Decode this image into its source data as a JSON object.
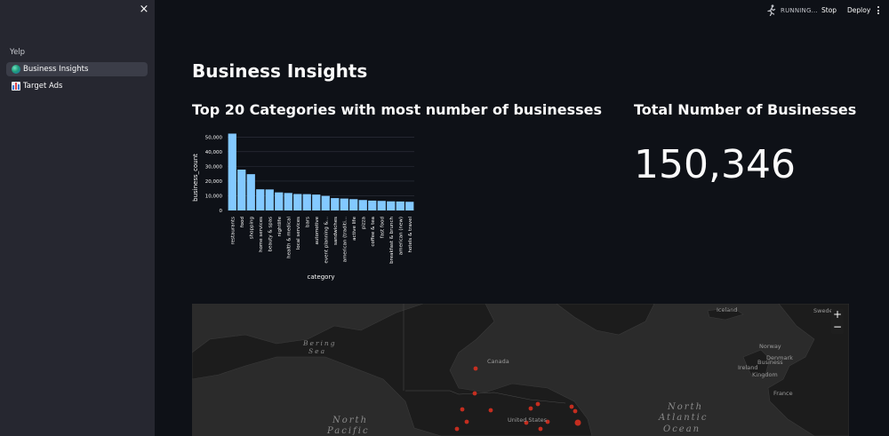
{
  "sidebar": {
    "close_icon": "×",
    "section_label": "Yelp",
    "items": [
      {
        "label": "Business Insights",
        "icon": "globe-icon"
      },
      {
        "label": "Target Ads",
        "icon": "bar-chart-icon"
      }
    ]
  },
  "toolbar": {
    "running_label": "RUNNING...",
    "stop_label": "Stop",
    "deploy_label": "Deploy"
  },
  "main": {
    "title": "Business Insights",
    "categories_heading": "Top 20 Categories with most number of businesses",
    "total_heading": "Total Number of Businesses",
    "total_value": "150,346"
  },
  "chart_data": {
    "type": "bar",
    "xlabel": "category",
    "ylabel": "business_count",
    "ylim": [
      0,
      55000
    ],
    "yticks": [
      "0",
      "10,000",
      "20,000",
      "30,000",
      "40,000",
      "50,000"
    ],
    "grid": true,
    "bar_color": "#83c9ff",
    "categories": [
      "restaurants",
      "food",
      "shopping",
      "home services",
      "beauty & spas",
      "nightlife",
      "health & medical",
      "local services",
      "bars",
      "automotive",
      "event planning &...",
      "sandwiches",
      "american (traditi...",
      "active life",
      "pizza",
      "coffee & tea",
      "fast food",
      "breakfast & brunch",
      "american (new)",
      "hotels & travel"
    ],
    "values": [
      52300,
      27800,
      24700,
      14400,
      14300,
      12300,
      11900,
      11200,
      11100,
      10800,
      9900,
      8400,
      8100,
      7700,
      7100,
      6700,
      6500,
      6200,
      6100,
      5900
    ]
  },
  "map": {
    "zoom_in": "+",
    "zoom_out": "−",
    "labels": {
      "iceland": "Iceland",
      "sweden": "Swede",
      "bering": "Bering",
      "sea": "Sea",
      "canada": "Canada",
      "norway": "Norway",
      "united_states": "United States",
      "denmark": "Denmark",
      "ireland": "Ireland",
      "uk": "Kingdom",
      "business": "Business",
      "france": "France",
      "north_pacific_1": "North",
      "north_pacific_2": "Pacific",
      "north_atlantic_1": "North",
      "north_atlantic_2": "Atlantic",
      "north_atlantic_3": "Ocean"
    },
    "point_color": "#d73020"
  }
}
